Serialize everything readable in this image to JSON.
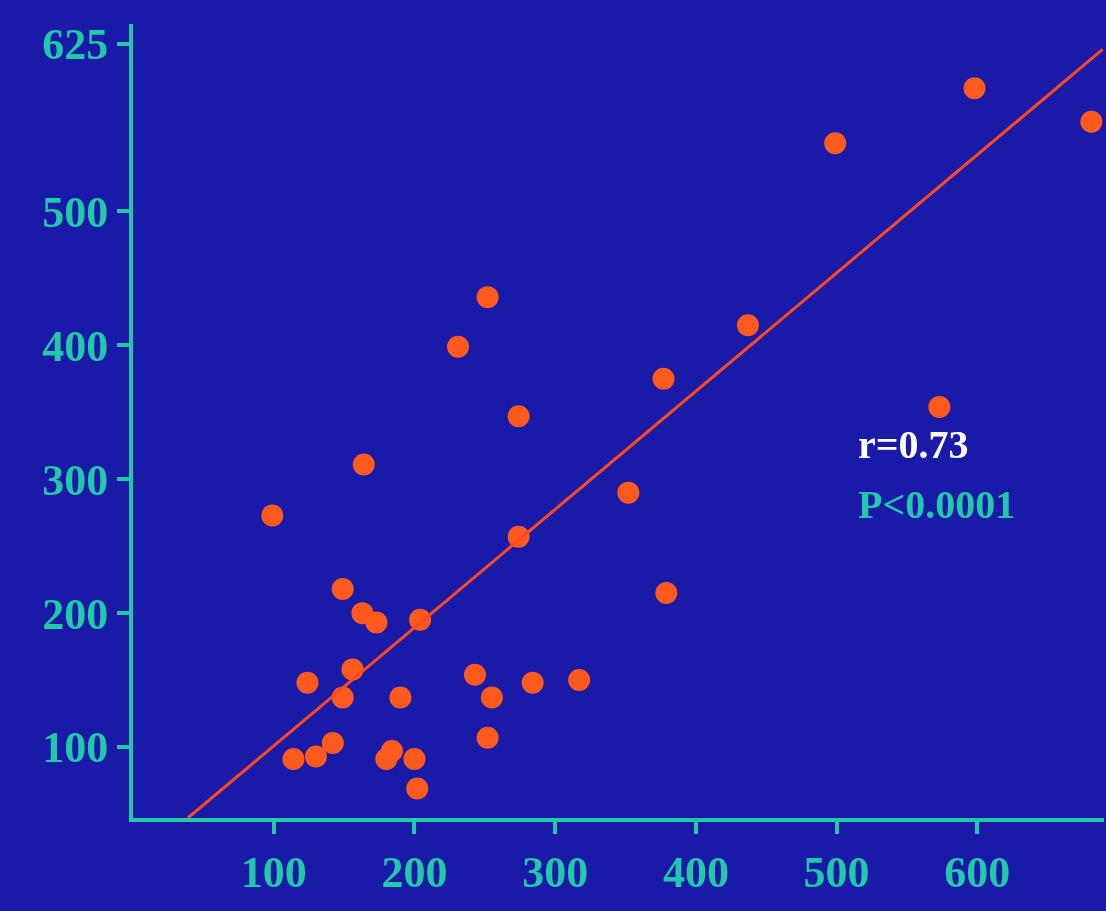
{
  "chart_data": {
    "type": "scatter",
    "xlim": [
      0,
      690
    ],
    "xticks": [
      100,
      200,
      300,
      400,
      500,
      600
    ],
    "ylim": [
      47,
      640
    ],
    "yticks": [
      100,
      200,
      300,
      400,
      500,
      625
    ],
    "grid": false,
    "marker": "circle",
    "series": [
      {
        "color": "#ff5a1e",
        "x": [
          99,
          114,
          124,
          130,
          142,
          149,
          149,
          156,
          164,
          163,
          173,
          180,
          184,
          190,
          200,
          202,
          204,
          231,
          243,
          252,
          252,
          255,
          274,
          274,
          284,
          317,
          352,
          377,
          379,
          437,
          499,
          573,
          598,
          681
        ],
        "values": [
          273,
          91,
          148,
          93,
          103,
          218,
          137,
          158,
          311,
          200,
          193,
          91,
          97,
          137,
          91,
          69,
          195,
          399,
          154,
          436,
          107,
          137,
          347,
          257,
          148,
          150,
          290,
          375,
          215,
          415,
          551,
          354,
          592,
          567
        ]
      },
      {
        "type": "line",
        "color": "#ff4a20",
        "marker": "none",
        "x": [
          39,
          689
        ],
        "values": [
          47,
          621
        ]
      }
    ],
    "annotations": [
      "r=0.73",
      "P<0.0001"
    ]
  }
}
